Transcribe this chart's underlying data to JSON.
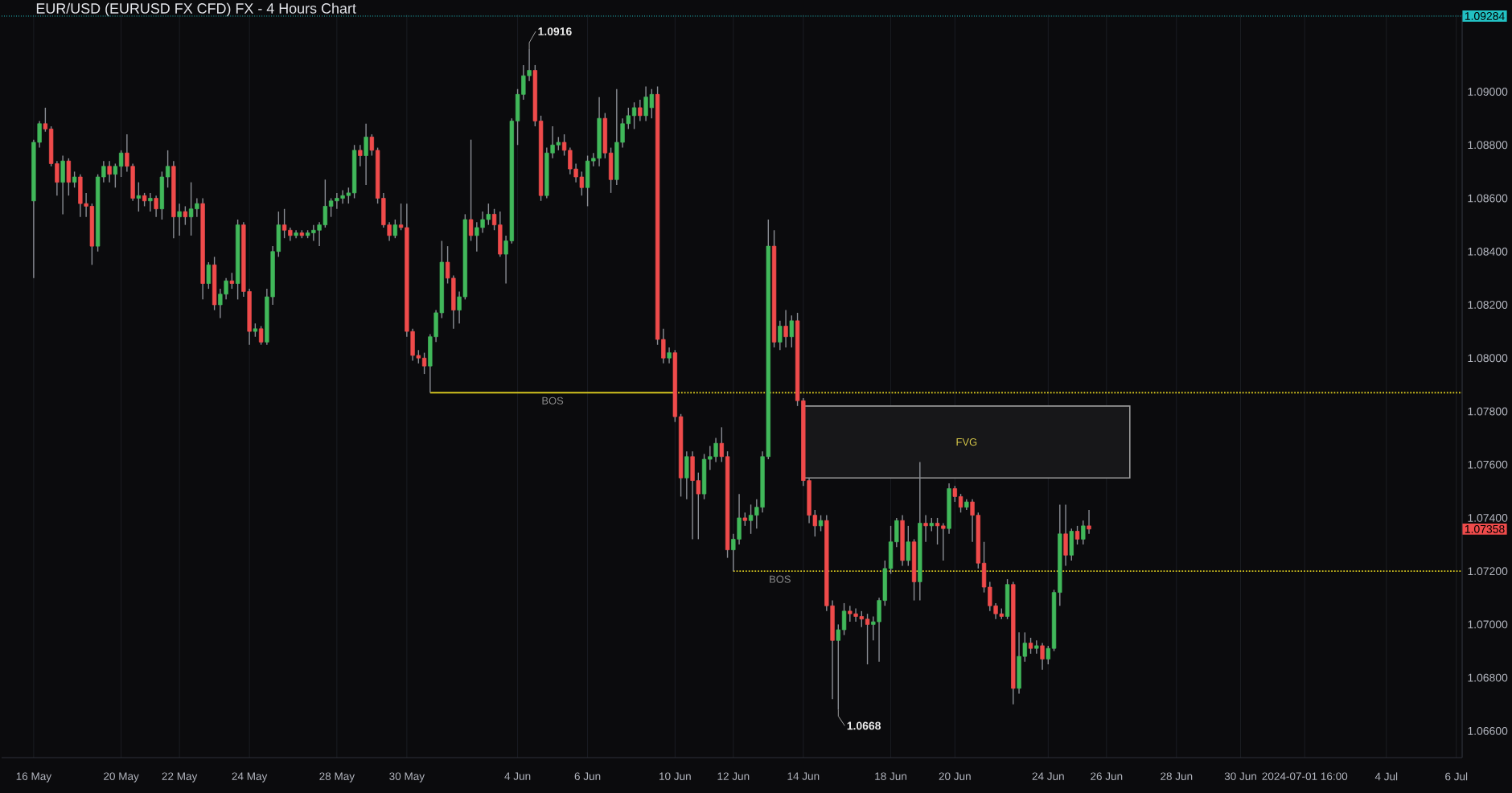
{
  "chart_data": {
    "type": "candlestick",
    "title": "EUR/USD (EURUSD FX CFD) FX - 4 Hours Chart",
    "categories": [
      "16 May",
      null,
      null,
      null,
      null,
      null,
      null,
      null,
      null,
      null,
      null,
      null,
      null,
      null,
      null,
      "20 May",
      null,
      null,
      null,
      null,
      null,
      null,
      null,
      null,
      null,
      "22 May",
      null,
      null,
      null,
      null,
      null,
      null,
      null,
      null,
      null,
      null,
      null,
      "24 May",
      null,
      null,
      null,
      null,
      null,
      null,
      null,
      null,
      null,
      null,
      null,
      null,
      null,
      null,
      "28 May",
      null,
      null,
      null,
      null,
      null,
      null,
      null,
      null,
      null,
      null,
      null,
      "30 May",
      null,
      null,
      null,
      null,
      null,
      null,
      null,
      null,
      null,
      null,
      null,
      null,
      null,
      null,
      null,
      null,
      null,
      null,
      "4 Jun",
      null,
      null,
      null,
      null,
      null,
      null,
      null,
      null,
      null,
      null,
      null,
      "6 Jun",
      null,
      null,
      null,
      null,
      null,
      null,
      null,
      null,
      null,
      null,
      null,
      null,
      null,
      null,
      "10 Jun",
      null,
      null,
      null,
      null,
      null,
      null,
      null,
      null,
      null,
      "12 Jun",
      null,
      null,
      null,
      null,
      null,
      null,
      null,
      null,
      null,
      null,
      null,
      "14 Jun",
      null,
      null,
      null,
      null,
      null,
      null,
      null,
      null,
      null,
      null,
      null,
      null,
      null,
      null,
      "18 Jun",
      null,
      null,
      null,
      null,
      null,
      null,
      null,
      null,
      null,
      null,
      "20 Jun",
      null,
      null,
      null,
      null,
      null,
      null,
      null,
      null,
      null,
      null,
      null,
      null,
      null,
      null,
      null,
      "24 Jun",
      null,
      null,
      null,
      null,
      null,
      null,
      null,
      null,
      null,
      "26 Jun",
      null,
      null,
      null,
      null,
      null,
      null,
      null,
      null,
      null,
      null,
      null,
      "28 Jun",
      null,
      null,
      null,
      null,
      null,
      null,
      null,
      null,
      null,
      null,
      "30 Jun",
      null,
      null,
      null,
      null,
      null,
      null,
      null,
      null,
      null,
      null,
      "2024-07-01 16:00",
      null,
      null,
      null,
      null,
      null,
      null,
      null,
      null,
      null,
      null,
      null,
      null,
      null,
      "4 Jul",
      null,
      null,
      null,
      null,
      null,
      null,
      null,
      null,
      null,
      null,
      null,
      "6 Jul",
      null
    ],
    "ohlc": [
      [
        1.0859,
        1.0882,
        1.083,
        1.0881
      ],
      [
        1.0881,
        1.0889,
        1.0879,
        1.0888
      ],
      [
        1.0888,
        1.0894,
        1.0885,
        1.0886
      ],
      [
        1.0886,
        1.0887,
        1.0872,
        1.0873
      ],
      [
        1.0873,
        1.0874,
        1.0861,
        1.0866
      ],
      [
        1.0866,
        1.0876,
        1.0854,
        1.0874
      ],
      [
        1.0874,
        1.0875,
        1.0861,
        1.0866
      ],
      [
        1.0866,
        1.087,
        1.0864,
        1.0868
      ],
      [
        1.0868,
        1.0869,
        1.0853,
        1.0858
      ],
      [
        1.0858,
        1.0862,
        1.0853,
        1.0857
      ],
      [
        1.0857,
        1.0858,
        1.0835,
        1.0842
      ],
      [
        1.0842,
        1.0869,
        1.084,
        1.0868
      ],
      [
        1.0868,
        1.0874,
        1.0866,
        1.0872
      ],
      [
        1.0872,
        1.0874,
        1.0866,
        1.0869
      ],
      [
        1.0869,
        1.0873,
        1.0864,
        1.0872
      ],
      [
        1.0872,
        1.0878,
        1.0868,
        1.0877
      ],
      [
        1.0877,
        1.0884,
        1.087,
        1.0872
      ],
      [
        1.0872,
        1.0873,
        1.0859,
        1.086
      ],
      [
        1.086,
        1.0866,
        1.0855,
        1.0861
      ],
      [
        1.0861,
        1.0862,
        1.0857,
        1.0859
      ],
      [
        1.0859,
        1.0862,
        1.0855,
        1.086
      ],
      [
        1.086,
        1.0861,
        1.0853,
        1.0856
      ],
      [
        1.0856,
        1.087,
        1.0852,
        1.0868
      ],
      [
        1.0868,
        1.0878,
        1.0864,
        1.0872
      ],
      [
        1.0872,
        1.0874,
        1.0845,
        1.0853
      ],
      [
        1.0853,
        1.0858,
        1.0846,
        1.0855
      ],
      [
        1.0855,
        1.0857,
        1.085,
        1.0853
      ],
      [
        1.0853,
        1.0866,
        1.0846,
        1.0856
      ],
      [
        1.0856,
        1.086,
        1.0853,
        1.0858
      ],
      [
        1.0858,
        1.086,
        1.0822,
        1.0828
      ],
      [
        1.0828,
        1.0836,
        1.0826,
        1.0835
      ],
      [
        1.0835,
        1.0838,
        1.0818,
        1.082
      ],
      [
        1.082,
        1.0826,
        1.0815,
        1.0824
      ],
      [
        1.0824,
        1.083,
        1.0822,
        1.0829
      ],
      [
        1.0829,
        1.0832,
        1.0826,
        1.0828
      ],
      [
        1.0828,
        1.0852,
        1.0822,
        1.085
      ],
      [
        1.085,
        1.0851,
        1.0823,
        1.0825
      ],
      [
        1.0825,
        1.0826,
        1.0805,
        1.081
      ],
      [
        1.081,
        1.0813,
        1.0808,
        1.0811
      ],
      [
        1.0811,
        1.0812,
        1.0805,
        1.0806
      ],
      [
        1.0806,
        1.0826,
        1.0805,
        1.0823
      ],
      [
        1.0823,
        1.0842,
        1.082,
        1.084
      ],
      [
        1.084,
        1.0855,
        1.0838,
        1.085
      ],
      [
        1.085,
        1.0856,
        1.0845,
        1.0848
      ],
      [
        1.0848,
        1.0849,
        1.0844,
        1.0846
      ],
      [
        1.0846,
        1.0848,
        1.0845,
        1.0847
      ],
      [
        1.0847,
        1.0848,
        1.0845,
        1.0846
      ],
      [
        1.0846,
        1.0848,
        1.0845,
        1.0847
      ],
      [
        1.0847,
        1.085,
        1.0844,
        1.0848
      ],
      [
        1.0848,
        1.0851,
        1.0842,
        1.085
      ],
      [
        1.085,
        1.0867,
        1.0849,
        1.0857
      ],
      [
        1.0857,
        1.086,
        1.0853,
        1.0859
      ],
      [
        1.0859,
        1.0862,
        1.0856,
        1.086
      ],
      [
        1.086,
        1.0863,
        1.0858,
        1.0861
      ],
      [
        1.0861,
        1.0864,
        1.0858,
        1.0862
      ],
      [
        1.0862,
        1.088,
        1.086,
        1.0878
      ],
      [
        1.0878,
        1.088,
        1.0872,
        1.0876
      ],
      [
        1.0876,
        1.0888,
        1.0865,
        1.0883
      ],
      [
        1.0883,
        1.0884,
        1.0876,
        1.0878
      ],
      [
        1.0878,
        1.0879,
        1.0858,
        1.086
      ],
      [
        1.086,
        1.0862,
        1.0849,
        1.085
      ],
      [
        1.085,
        1.0851,
        1.0844,
        1.0846
      ],
      [
        1.0846,
        1.0852,
        1.0845,
        1.085
      ],
      [
        1.085,
        1.0858,
        1.0848,
        1.0849
      ],
      [
        1.0849,
        1.0858,
        1.0808,
        1.081
      ],
      [
        1.081,
        1.0811,
        1.0799,
        1.0801
      ],
      [
        1.0801,
        1.0803,
        1.0798,
        1.08
      ],
      [
        1.08,
        1.0802,
        1.0794,
        1.0797
      ],
      [
        1.0797,
        1.0809,
        1.0787,
        1.0808
      ],
      [
        1.0808,
        1.0818,
        1.0806,
        1.0817
      ],
      [
        1.0817,
        1.0844,
        1.0815,
        1.0836
      ],
      [
        1.0836,
        1.0842,
        1.0828,
        1.083
      ],
      [
        1.083,
        1.0831,
        1.0811,
        1.0818
      ],
      [
        1.0818,
        1.0825,
        1.0813,
        1.0823
      ],
      [
        1.0823,
        1.0854,
        1.0822,
        1.0852
      ],
      [
        1.0852,
        1.0882,
        1.0844,
        1.0846
      ],
      [
        1.0846,
        1.0851,
        1.084,
        1.0849
      ],
      [
        1.0849,
        1.0855,
        1.0847,
        1.0852
      ],
      [
        1.0852,
        1.0858,
        1.085,
        1.0854
      ],
      [
        1.0854,
        1.0856,
        1.0848,
        1.085
      ],
      [
        1.085,
        1.0855,
        1.0838,
        1.0839
      ],
      [
        1.0839,
        1.0846,
        1.0828,
        1.0844
      ],
      [
        1.0844,
        1.089,
        1.0843,
        1.0889
      ],
      [
        1.0889,
        1.0901,
        1.088,
        1.0899
      ],
      [
        1.0899,
        1.091,
        1.0897,
        1.0906
      ],
      [
        1.0906,
        1.0916,
        1.0904,
        1.0908
      ],
      [
        1.0908,
        1.091,
        1.0887,
        1.0889
      ],
      [
        1.0889,
        1.0891,
        1.0859,
        1.0861
      ],
      [
        1.0861,
        1.0879,
        1.086,
        1.0877
      ],
      [
        1.0877,
        1.0887,
        1.0875,
        1.088
      ],
      [
        1.088,
        1.0883,
        1.0878,
        1.0881
      ],
      [
        1.0881,
        1.0884,
        1.0876,
        1.0878
      ],
      [
        1.0878,
        1.0879,
        1.0869,
        1.0871
      ],
      [
        1.0871,
        1.0873,
        1.0866,
        1.0868
      ],
      [
        1.0868,
        1.087,
        1.0861,
        1.0864
      ],
      [
        1.0864,
        1.0876,
        1.0857,
        1.0874
      ],
      [
        1.0874,
        1.0877,
        1.0872,
        1.0875
      ],
      [
        1.0875,
        1.0898,
        1.0872,
        1.089
      ],
      [
        1.089,
        1.0892,
        1.0875,
        1.0877
      ],
      [
        1.0877,
        1.0879,
        1.0862,
        1.0867
      ],
      [
        1.0867,
        1.0901,
        1.0865,
        1.0881
      ],
      [
        1.0881,
        1.089,
        1.0879,
        1.0888
      ],
      [
        1.0888,
        1.0894,
        1.0886,
        1.0891
      ],
      [
        1.0891,
        1.0896,
        1.0886,
        1.0894
      ],
      [
        1.0894,
        1.0897,
        1.0889,
        1.0891
      ],
      [
        1.0891,
        1.0902,
        1.0889,
        1.0898
      ],
      [
        1.0894,
        1.0901,
        1.089,
        1.0899
      ],
      [
        1.0899,
        1.0902,
        1.0805,
        1.0807
      ],
      [
        1.0807,
        1.0811,
        1.0798,
        1.08
      ],
      [
        1.08,
        1.0804,
        1.0798,
        1.0802
      ],
      [
        1.0802,
        1.0803,
        1.0776,
        1.0778
      ],
      [
        1.0778,
        1.0779,
        1.0748,
        1.0755
      ],
      [
        1.0755,
        1.0765,
        1.0747,
        1.0763
      ],
      [
        1.0763,
        1.0765,
        1.0732,
        1.0754
      ],
      [
        1.0754,
        1.0757,
        1.0732,
        1.0749
      ],
      [
        1.0749,
        1.0764,
        1.0747,
        1.0762
      ],
      [
        1.0762,
        1.0767,
        1.0758,
        1.0763
      ],
      [
        1.0763,
        1.077,
        1.0761,
        1.0768
      ],
      [
        1.0768,
        1.0774,
        1.0761,
        1.0763
      ],
      [
        1.0763,
        1.0765,
        1.0725,
        1.0728
      ],
      [
        1.0728,
        1.0734,
        1.072,
        1.0732
      ],
      [
        1.0732,
        1.0749,
        1.073,
        1.074
      ],
      [
        1.074,
        1.0742,
        1.0737,
        1.0739
      ],
      [
        1.0739,
        1.0745,
        1.0734,
        1.0741
      ],
      [
        1.0741,
        1.0747,
        1.0736,
        1.0744
      ],
      [
        1.0744,
        1.0765,
        1.0742,
        1.0763
      ],
      [
        1.0763,
        1.0852,
        1.0762,
        1.0842
      ],
      [
        1.0842,
        1.0848,
        1.0804,
        1.0806
      ],
      [
        1.0806,
        1.0814,
        1.0803,
        1.0812
      ],
      [
        1.0812,
        1.0818,
        1.0804,
        1.0808
      ],
      [
        1.0808,
        1.0816,
        1.0804,
        1.0814
      ],
      [
        1.0814,
        1.0817,
        1.0782,
        1.0784
      ],
      [
        1.0784,
        1.0785,
        1.0752,
        1.0754
      ],
      [
        1.0754,
        1.0755,
        1.0738,
        1.0741
      ],
      [
        1.0741,
        1.0743,
        1.0733,
        1.0737
      ],
      [
        1.0737,
        1.0741,
        1.0735,
        1.0739
      ],
      [
        1.0739,
        1.0741,
        1.0705,
        1.0707
      ],
      [
        1.0707,
        1.0709,
        1.0672,
        1.0694
      ],
      [
        1.0694,
        1.07,
        1.0668,
        1.0698
      ],
      [
        1.0698,
        1.0708,
        1.0696,
        1.0705
      ],
      [
        1.0705,
        1.0707,
        1.0701,
        1.0704
      ],
      [
        1.0704,
        1.0706,
        1.0701,
        1.0703
      ],
      [
        1.0703,
        1.0705,
        1.0699,
        1.0702
      ],
      [
        1.0702,
        1.0704,
        1.0685,
        1.07
      ],
      [
        1.07,
        1.0703,
        1.0694,
        1.0701
      ],
      [
        1.0701,
        1.071,
        1.0686,
        1.0709
      ],
      [
        1.0709,
        1.0724,
        1.0707,
        1.0721
      ],
      [
        1.0721,
        1.0737,
        1.0719,
        1.0731
      ],
      [
        1.0731,
        1.074,
        1.0729,
        1.0739
      ],
      [
        1.0739,
        1.0741,
        1.0722,
        1.0724
      ],
      [
        1.0724,
        1.0737,
        1.0722,
        1.0731
      ],
      [
        1.0731,
        1.0732,
        1.0709,
        1.0716
      ],
      [
        1.0716,
        1.0761,
        1.0709,
        1.0738
      ],
      [
        1.0738,
        1.0741,
        1.0731,
        1.0737
      ],
      [
        1.0737,
        1.074,
        1.0735,
        1.0738
      ],
      [
        1.0738,
        1.074,
        1.073,
        1.0737
      ],
      [
        1.0737,
        1.0738,
        1.0724,
        1.0736
      ],
      [
        1.0736,
        1.0753,
        1.0734,
        1.0751
      ],
      [
        1.0751,
        1.0752,
        1.0746,
        1.0748
      ],
      [
        1.0748,
        1.0749,
        1.0742,
        1.0744
      ],
      [
        1.0744,
        1.0747,
        1.0743,
        1.0746
      ],
      [
        1.0746,
        1.0747,
        1.0731,
        1.0741
      ],
      [
        1.0741,
        1.0742,
        1.0721,
        1.0723
      ],
      [
        1.0723,
        1.0731,
        1.0712,
        1.0714
      ],
      [
        1.0714,
        1.0716,
        1.0705,
        1.0707
      ],
      [
        1.0707,
        1.0708,
        1.0702,
        1.0704
      ],
      [
        1.0704,
        1.0706,
        1.0702,
        1.0703
      ],
      [
        1.0703,
        1.0717,
        1.0702,
        1.0715
      ],
      [
        1.0715,
        1.0716,
        1.067,
        1.0676
      ],
      [
        1.0676,
        1.0697,
        1.0674,
        1.0688
      ],
      [
        1.0688,
        1.0697,
        1.0686,
        1.0693
      ],
      [
        1.0693,
        1.0695,
        1.0689,
        1.0691
      ],
      [
        1.0691,
        1.0694,
        1.0689,
        1.0692
      ],
      [
        1.0692,
        1.0693,
        1.0683,
        1.0687
      ],
      [
        1.0687,
        1.0692,
        1.0685,
        1.0691
      ],
      [
        1.0691,
        1.0713,
        1.069,
        1.0712
      ],
      [
        1.0712,
        1.0745,
        1.0707,
        1.0734
      ],
      [
        1.0734,
        1.0745,
        1.0722,
        1.0726
      ],
      [
        1.0726,
        1.0736,
        1.0724,
        1.0735
      ],
      [
        1.0735,
        1.0737,
        1.073,
        1.0732
      ],
      [
        1.0732,
        1.0739,
        1.073,
        1.0737
      ],
      [
        1.0737,
        1.0743,
        1.0734,
        1.07358
      ],
      null,
      null,
      null,
      null,
      null,
      null,
      null,
      null,
      null,
      null,
      null,
      null,
      null,
      null,
      null,
      null,
      null,
      null,
      null,
      null,
      null,
      null,
      null,
      null,
      null,
      null,
      null,
      null,
      null,
      null,
      null,
      null,
      null,
      null,
      null,
      null,
      null,
      null,
      null,
      null,
      null,
      null,
      null,
      null,
      null,
      null,
      null,
      null,
      null,
      null,
      null,
      null,
      null,
      null,
      null,
      null,
      null,
      null,
      null,
      null,
      null,
      null,
      null,
      null
    ],
    "colors": [
      "#41b85a",
      "#41b85a",
      "#ef4b4b",
      "#ef4b4b",
      "#ef4b4b",
      "#41b85a",
      "#ef4b4b",
      "#41b85a",
      "#ef4b4b",
      "#ef4b4b",
      "#ef4b4b",
      "#41b85a",
      "#41b85a",
      "#ef4b4b",
      "#41b85a",
      "#41b85a",
      "#ef4b4b",
      "#ef4b4b",
      "#41b85a",
      "#ef4b4b",
      "#41b85a",
      "#ef4b4b",
      "#41b85a",
      "#41b85a",
      "#ef4b4b",
      "#41b85a",
      "#ef4b4b",
      "#41b85a",
      "#41b85a",
      "#ef4b4b",
      "#41b85a",
      "#ef4b4b",
      "#41b85a",
      "#41b85a",
      "#ef4b4b",
      "#41b85a",
      "#ef4b4b",
      "#ef4b4b",
      "#41b85a",
      "#ef4b4b",
      "#41b85a",
      "#41b85a",
      "#41b85a",
      "#ef4b4b",
      "#ef4b4b",
      "#41b85a",
      "#ef4b4b",
      "#41b85a",
      "#41b85a",
      "#41b85a",
      "#41b85a",
      "#41b85a",
      "#41b85a",
      "#41b85a",
      "#41b85a",
      "#41b85a",
      "#ef4b4b",
      "#41b85a",
      "#ef4b4b",
      "#ef4b4b",
      "#ef4b4b",
      "#ef4b4b",
      "#41b85a",
      "#ef4b4b",
      "#ef4b4b",
      "#ef4b4b",
      "#ef4b4b",
      "#ef4b4b",
      "#41b85a",
      "#41b85a",
      "#41b85a",
      "#ef4b4b",
      "#ef4b4b",
      "#41b85a",
      "#41b85a",
      "#ef4b4b",
      "#41b85a",
      "#41b85a",
      "#41b85a",
      "#ef4b4b",
      "#ef4b4b",
      "#41b85a",
      "#41b85a",
      "#41b85a",
      "#41b85a",
      "#41b85a",
      "#ef4b4b",
      "#ef4b4b",
      "#41b85a",
      "#41b85a",
      "#41b85a",
      "#ef4b4b",
      "#ef4b4b",
      "#ef4b4b",
      "#ef4b4b",
      "#41b85a",
      "#41b85a",
      "#41b85a",
      "#ef4b4b",
      "#ef4b4b",
      "#41b85a",
      "#41b85a",
      "#41b85a",
      "#41b85a",
      "#ef4b4b",
      "#41b85a",
      "#41b85a",
      "#ef4b4b",
      "#ef4b4b",
      "#41b85a",
      "#ef4b4b",
      "#ef4b4b",
      "#41b85a",
      "#ef4b4b",
      "#ef4b4b",
      "#41b85a",
      "#41b85a",
      "#41b85a",
      "#ef4b4b",
      "#ef4b4b",
      "#41b85a",
      "#41b85a",
      "#ef4b4b",
      "#41b85a",
      "#41b85a",
      "#41b85a",
      "#41b85a",
      "#ef4b4b",
      "#41b85a",
      "#ef4b4b",
      "#41b85a",
      "#ef4b4b",
      "#ef4b4b",
      "#ef4b4b",
      "#ef4b4b",
      "#41b85a",
      "#ef4b4b",
      "#ef4b4b",
      "#41b85a",
      "#41b85a",
      "#ef4b4b",
      "#ef4b4b",
      "#ef4b4b",
      "#ef4b4b",
      "#41b85a",
      "#41b85a",
      "#41b85a",
      "#41b85a",
      "#41b85a",
      "#ef4b4b",
      "#41b85a",
      "#ef4b4b",
      "#41b85a",
      "#ef4b4b",
      "#41b85a",
      "#ef4b4b",
      "#ef4b4b",
      "#41b85a",
      "#ef4b4b",
      "#ef4b4b",
      "#41b85a",
      "#ef4b4b",
      "#ef4b4b",
      "#ef4b4b",
      "#ef4b4b",
      "#ef4b4b",
      "#ef4b4b",
      "#41b85a",
      "#ef4b4b",
      "#41b85a",
      "#41b85a",
      "#ef4b4b",
      "#41b85a",
      "#ef4b4b",
      "#41b85a",
      "#41b85a",
      "#41b85a",
      "#ef4b4b",
      "#41b85a",
      "#ef4b4b",
      "#41b85a",
      "#ef4b4b",
      null,
      null,
      null,
      null,
      null,
      null,
      null,
      null,
      null,
      null,
      null,
      null,
      null,
      null,
      null,
      null,
      null,
      null,
      null,
      null,
      null,
      null,
      null,
      null,
      null,
      null,
      null,
      null,
      null,
      null,
      null,
      null,
      null,
      null,
      null,
      null,
      null,
      null,
      null,
      null,
      null,
      null,
      null,
      null,
      null,
      null,
      null,
      null,
      null,
      null,
      null,
      null,
      null,
      null,
      null,
      null,
      null,
      null,
      null,
      null,
      null,
      null,
      null,
      null
    ],
    "value_labels": [
      null,
      null,
      null,
      null,
      null,
      null,
      null,
      null,
      null,
      null,
      null,
      null,
      null,
      null,
      null,
      null,
      null,
      null,
      null,
      null,
      null,
      null,
      null,
      null,
      null,
      null,
      null,
      null,
      null,
      null,
      null,
      null,
      null,
      null,
      null,
      null,
      null,
      null,
      null,
      null,
      null,
      null,
      null,
      null,
      null,
      null,
      null,
      null,
      null,
      null,
      null,
      null,
      null,
      null,
      null,
      null,
      null,
      null,
      null,
      null,
      null,
      null,
      null,
      null,
      null,
      null,
      null,
      null,
      null,
      null,
      null,
      null,
      null,
      null,
      null,
      null,
      null,
      null,
      null,
      null,
      null,
      null,
      null,
      null,
      null,
      "1.0916",
      null,
      null,
      null,
      null,
      null,
      null,
      null,
      null,
      null,
      null,
      null,
      null,
      null,
      null,
      null,
      null,
      null,
      null,
      null,
      null,
      null,
      null,
      null,
      null,
      null,
      null,
      null,
      null,
      null,
      null,
      null,
      null,
      null,
      null,
      null,
      null,
      null,
      null,
      null,
      null,
      null,
      null,
      null,
      null,
      null,
      null,
      null,
      null,
      null,
      null,
      null,
      null,
      "1.0668",
      null,
      null,
      null,
      null,
      null,
      null,
      null,
      null,
      null,
      null,
      null,
      null,
      null,
      null,
      null,
      null,
      null,
      null,
      null,
      null,
      null,
      null,
      null,
      null,
      null,
      null,
      null,
      null,
      null,
      null,
      null,
      null,
      null,
      null,
      null,
      null,
      null,
      null,
      null,
      null,
      null,
      null,
      null,
      null,
      null,
      null,
      null,
      null,
      null,
      null,
      null,
      null,
      null,
      null,
      null,
      null,
      null,
      null,
      null,
      null,
      null,
      null,
      null,
      null,
      null,
      null,
      null,
      null,
      null,
      null,
      null,
      null,
      null,
      null,
      null,
      null,
      null,
      null,
      null,
      null,
      null,
      null,
      null,
      null,
      null,
      null,
      null,
      null,
      null,
      null,
      null,
      null,
      null,
      null,
      null,
      null,
      null,
      null,
      null,
      null,
      null,
      null,
      null,
      null,
      null,
      null,
      null
    ],
    "ylim": [
      1.065,
      1.0929
    ],
    "yticks": [
      {
        "value": 1.066,
        "label": "1.06600"
      },
      {
        "value": 1.068,
        "label": "1.06800"
      },
      {
        "value": 1.07,
        "label": "1.07000"
      },
      {
        "value": 1.072,
        "label": "1.07200"
      },
      {
        "value": 1.074,
        "label": "1.07400"
      },
      {
        "value": 1.076,
        "label": "1.07600"
      },
      {
        "value": 1.078,
        "label": "1.07800"
      },
      {
        "value": 1.08,
        "label": "1.08000"
      },
      {
        "value": 1.082,
        "label": "1.08200"
      },
      {
        "value": 1.084,
        "label": "1.08400"
      },
      {
        "value": 1.086,
        "label": "1.08600"
      },
      {
        "value": 1.088,
        "label": "1.08800"
      },
      {
        "value": 1.09,
        "label": "1.09000"
      }
    ],
    "grid": "x",
    "ref_lines": [
      {
        "axis": "y",
        "value": 1.0787,
        "label": "BOS",
        "color": "#d4c51f",
        "line_style": "solid"
      },
      {
        "axis": "y",
        "value": 1.0787,
        "color": "#d4c51f",
        "line_style": "dotted"
      },
      {
        "axis": "y",
        "value": 1.072,
        "label": "BOS",
        "color": "#d4c51f",
        "line_style": "dotted"
      },
      {
        "axis": "y",
        "value": 1.09284,
        "label": "1.09284",
        "color": "#22c1c3",
        "line_style": "dotted"
      }
    ],
    "bands": [
      {
        "axis": "y",
        "from": 1.0755,
        "to": 1.0782,
        "label": "FVG",
        "color": "#9a9a9a"
      }
    ],
    "annotations": [
      "1.07358"
    ]
  }
}
